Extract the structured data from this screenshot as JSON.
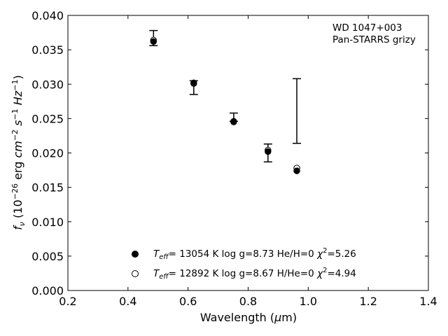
{
  "chart_data": {
    "type": "scatter",
    "xlabel": "Wavelength (μm)",
    "ylabel": "f_ν (10^-26 erg cm^-2 s^-1 Hz^-1)",
    "xlim": [
      0.2,
      1.4
    ],
    "ylim": [
      0.0,
      0.04
    ],
    "x_ticks": [
      0.2,
      0.4,
      0.6,
      0.8,
      1.0,
      1.2,
      1.4
    ],
    "x_tick_labels": [
      "0.2",
      "0.4",
      "0.6",
      "0.8",
      "1.0",
      "1.2",
      "1.4"
    ],
    "y_ticks": [
      0.0,
      0.005,
      0.01,
      0.015,
      0.02,
      0.025,
      0.03,
      0.035,
      0.04
    ],
    "y_tick_labels": [
      "0.000",
      "0.005",
      "0.010",
      "0.015",
      "0.020",
      "0.025",
      "0.030",
      "0.035",
      "0.040"
    ],
    "grid": false,
    "legend_placement": "lower-center",
    "annotation": [
      "WD 1047+003",
      "Pan-STARRS grizy"
    ],
    "observed": {
      "x": [
        0.485,
        0.619,
        0.752,
        0.866,
        0.962
      ],
      "y": [
        0.0367,
        0.0295,
        0.0252,
        0.02,
        0.0261
      ],
      "yerr": [
        0.0011,
        0.001,
        0.0006,
        0.0013,
        0.0047
      ]
    },
    "series": [
      {
        "name": "Teff= 13054 K  log g=8.73  He/H=0  χ2=5.26",
        "marker": "filled",
        "x": [
          0.485,
          0.619,
          0.752,
          0.866,
          0.962
        ],
        "y": [
          0.0362,
          0.0302,
          0.0246,
          0.0202,
          0.0174
        ]
      },
      {
        "name": "Teff= 12892 K  log g=8.67  H/He=0  χ2=4.94",
        "marker": "open",
        "x": [
          0.485,
          0.619,
          0.752,
          0.866,
          0.962
        ],
        "y": [
          0.0364,
          0.0301,
          0.0245,
          0.0204,
          0.0178
        ]
      }
    ],
    "colors": {
      "marker": "#000000",
      "errorbar": "#000000"
    }
  }
}
